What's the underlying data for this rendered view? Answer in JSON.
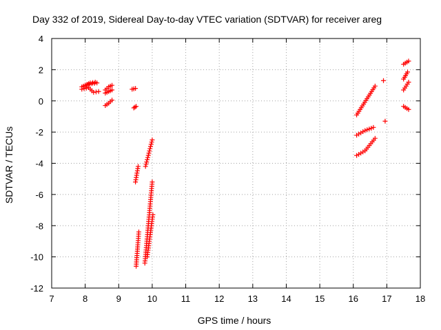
{
  "chart_data": {
    "type": "scatter",
    "title": "Day 332 of 2019, Sidereal Day-to-day VTEC variation (SDTVAR) for receiver areg",
    "xlabel": "GPS time / hours",
    "ylabel": "SDTVAR / TECUs",
    "xlim": [
      7,
      18
    ],
    "ylim": [
      -12,
      4
    ],
    "xticks": [
      7,
      8,
      9,
      10,
      11,
      12,
      13,
      14,
      15,
      16,
      17,
      18
    ],
    "yticks": [
      -12,
      -10,
      -8,
      -6,
      -4,
      -2,
      0,
      2,
      4
    ],
    "grid": true,
    "marker": "+",
    "color": "#ff0000",
    "tracks": [
      {
        "x": [
          7.9,
          8.05,
          8.15,
          8.3
        ],
        "y": [
          0.9,
          1.05,
          1.15,
          1.2
        ]
      },
      {
        "x": [
          7.9,
          8.1,
          8.25,
          8.4
        ],
        "y": [
          0.75,
          0.85,
          0.55,
          0.6
        ]
      },
      {
        "x": [
          8.0,
          8.2,
          8.35
        ],
        "y": [
          1.0,
          1.1,
          1.15
        ]
      },
      {
        "x": [
          8.6,
          8.7,
          8.8
        ],
        "y": [
          0.7,
          0.9,
          1.0
        ]
      },
      {
        "x": [
          8.6,
          8.7,
          8.8
        ],
        "y": [
          0.5,
          0.6,
          0.7
        ]
      },
      {
        "x": [
          8.6,
          8.7,
          8.8
        ],
        "y": [
          -0.3,
          -0.15,
          0.05
        ]
      },
      {
        "x": [
          9.4,
          9.5
        ],
        "y": [
          0.75,
          0.8
        ]
      },
      {
        "x": [
          9.45,
          9.52
        ],
        "y": [
          -0.45,
          -0.35
        ]
      },
      {
        "x": [
          9.5,
          9.58
        ],
        "y": [
          -5.2,
          -4.2
        ]
      },
      {
        "x": [
          9.52,
          9.6
        ],
        "y": [
          -10.6,
          -8.4
        ]
      },
      {
        "x": [
          9.8,
          10.0
        ],
        "y": [
          -4.2,
          -2.5
        ]
      },
      {
        "x": [
          9.78,
          10.0
        ],
        "y": [
          -10.4,
          -5.2
        ]
      },
      {
        "x": [
          9.85,
          10.02
        ],
        "y": [
          -10.0,
          -7.3
        ]
      },
      {
        "x": [
          16.1,
          16.65
        ],
        "y": [
          -0.9,
          0.95
        ]
      },
      {
        "x": [
          16.1,
          16.35,
          16.6
        ],
        "y": [
          -2.2,
          -1.9,
          -1.7
        ]
      },
      {
        "x": [
          16.1,
          16.35,
          16.65
        ],
        "y": [
          -3.5,
          -3.2,
          -2.4
        ]
      },
      {
        "x": [
          17.5,
          17.65
        ],
        "y": [
          2.35,
          2.55
        ]
      },
      {
        "x": [
          17.5,
          17.62
        ],
        "y": [
          1.4,
          1.85
        ]
      },
      {
        "x": [
          17.5,
          17.65
        ],
        "y": [
          0.7,
          1.2
        ]
      },
      {
        "x": [
          17.5,
          17.65
        ],
        "y": [
          -0.35,
          -0.55
        ]
      }
    ],
    "isolated_points": [
      {
        "x": 16.9,
        "y": 1.3
      },
      {
        "x": 16.95,
        "y": -1.3
      }
    ]
  }
}
